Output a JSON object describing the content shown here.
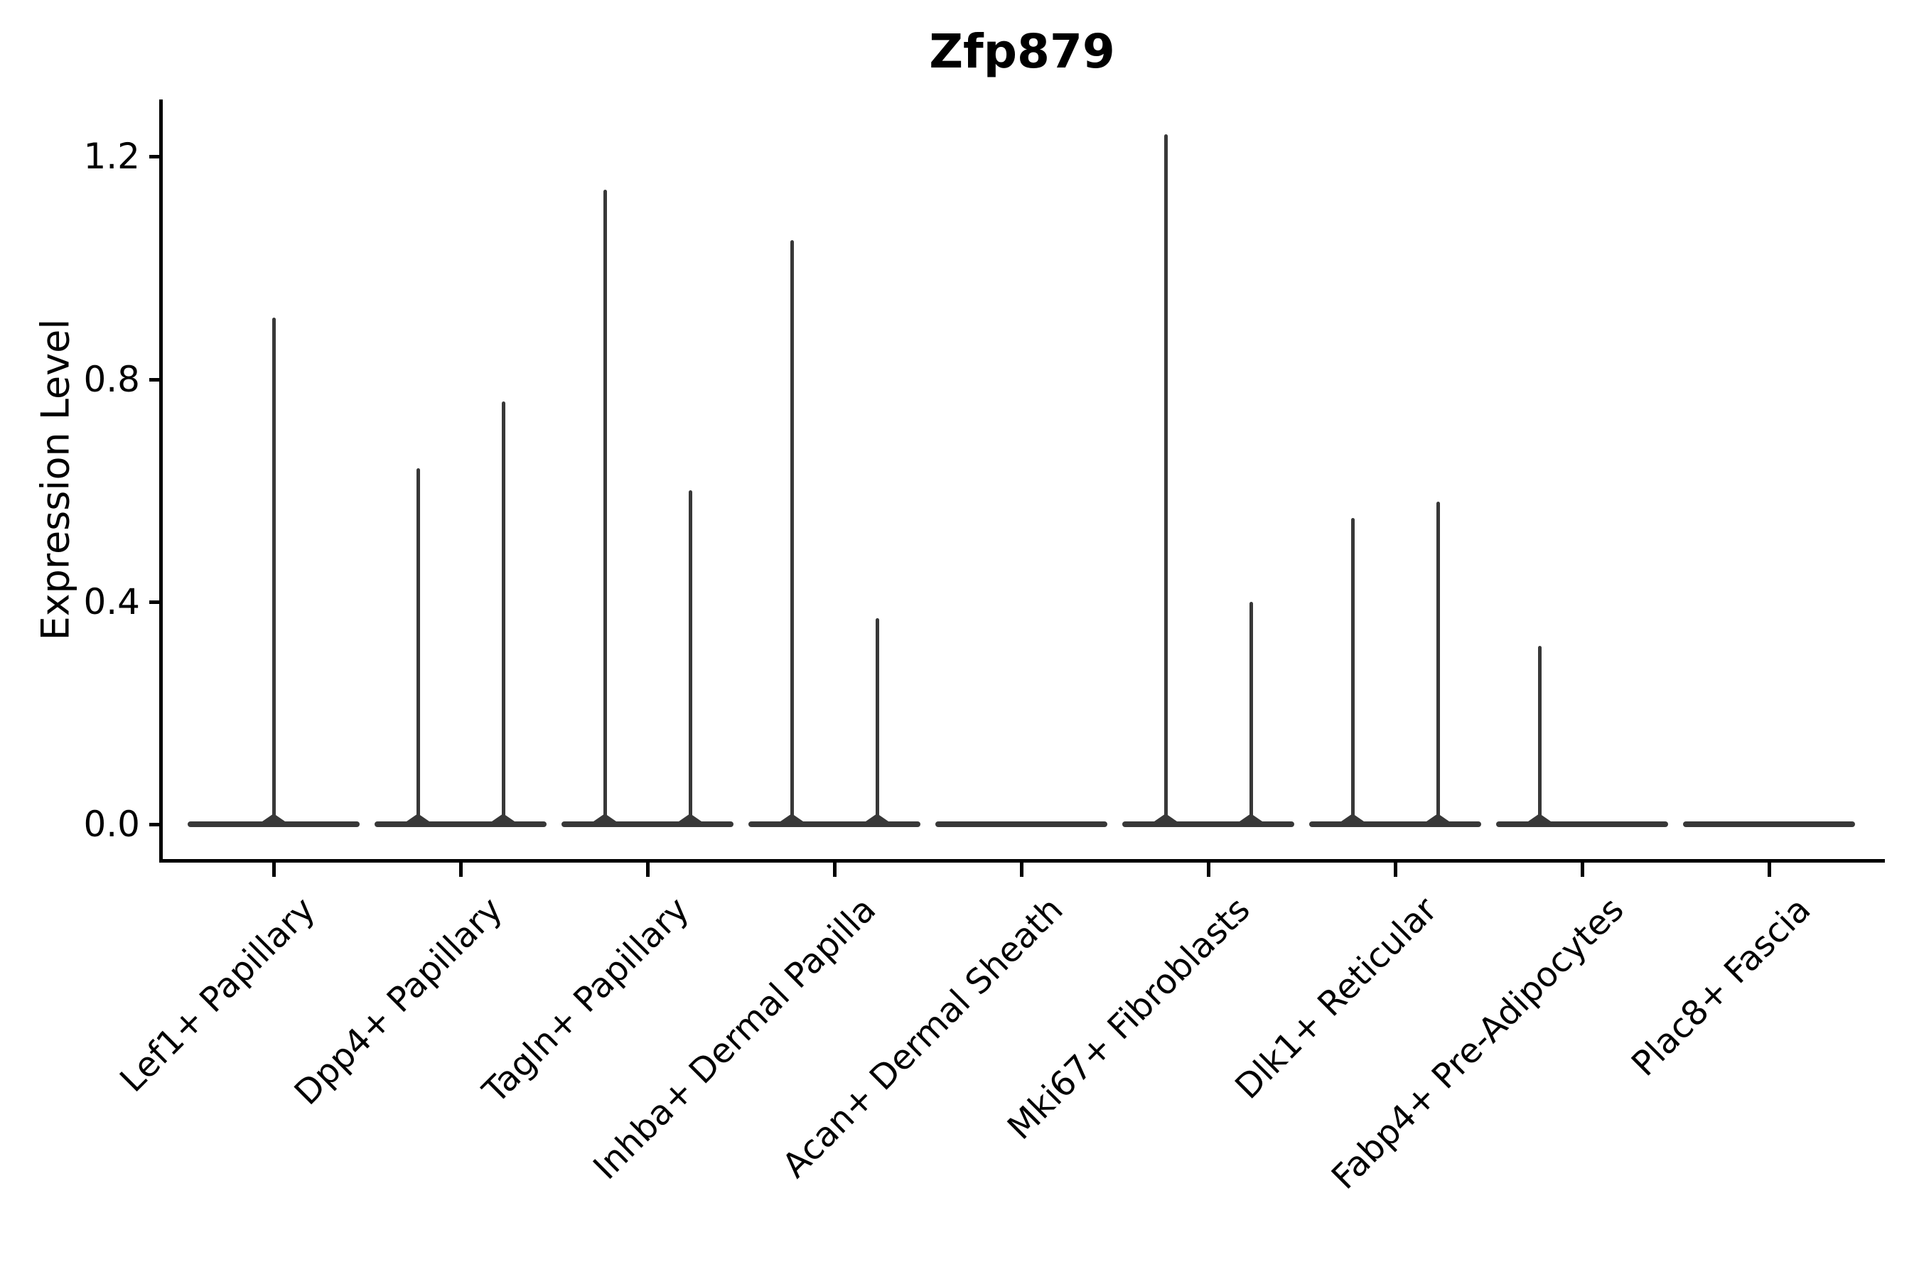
{
  "title": "Zfp879",
  "y_axis": {
    "label": "Expression Level",
    "tick_labels": [
      "0.0",
      "0.4",
      "0.8",
      "1.2"
    ]
  },
  "x_axis": {
    "tick_labels": [
      "Lef1+ Papillary",
      "Dpp4+ Papillary",
      "Tagln+ Papillary",
      "Inhba+ Dermal Papilla",
      "Acan+ Dermal Sheath",
      "Mki67+ Fibroblasts",
      "Dlk1+ Reticular",
      "Fabp4+ Pre-Adipocytes",
      "Plac8+ Fascia"
    ]
  },
  "chart_data": {
    "type": "violin",
    "title": "Zfp879",
    "xlabel": "",
    "ylabel": "Expression Level",
    "yticks": [
      0.0,
      0.4,
      0.8,
      1.2
    ],
    "ytick_labels": [
      "0.0",
      "0.4",
      "0.8",
      "1.2"
    ],
    "ylim": [
      -0.06,
      1.31
    ],
    "grid": false,
    "legend": null,
    "categories": [
      "Lef1+ Papillary",
      "Dpp4+ Papillary",
      "Tagln+ Papillary",
      "Inhba+ Dermal Papilla",
      "Acan+ Dermal Sheath",
      "Mki67+ Fibroblasts",
      "Dlk1+ Reticular",
      "Fabp4+ Pre-Adipocytes",
      "Plac8+ Fascia"
    ],
    "description": "Violin plot; each violin's density mass sits at expression 0 (flat wide base) with thin vertical tails reaching the listed maximum expression values. Categories with an empty tails list are flat (all-zero expression).",
    "violins": [
      {
        "category": "Lef1+ Papillary",
        "tails": [
          {
            "position": "center",
            "max": 0.91
          }
        ]
      },
      {
        "category": "Dpp4+ Papillary",
        "tails": [
          {
            "position": "left",
            "max": 0.64
          },
          {
            "position": "right",
            "max": 0.76
          }
        ]
      },
      {
        "category": "Tagln+ Papillary",
        "tails": [
          {
            "position": "left",
            "max": 1.14
          },
          {
            "position": "right",
            "max": 0.6
          }
        ]
      },
      {
        "category": "Inhba+ Dermal Papilla",
        "tails": [
          {
            "position": "left",
            "max": 1.05
          },
          {
            "position": "right",
            "max": 0.37
          }
        ]
      },
      {
        "category": "Acan+ Dermal Sheath",
        "tails": []
      },
      {
        "category": "Mki67+ Fibroblasts",
        "tails": [
          {
            "position": "left",
            "max": 1.24
          },
          {
            "position": "right",
            "max": 0.4
          }
        ]
      },
      {
        "category": "Dlk1+ Reticular",
        "tails": [
          {
            "position": "left",
            "max": 0.55
          },
          {
            "position": "right",
            "max": 0.58
          }
        ]
      },
      {
        "category": "Fabp4+ Pre-Adipocytes",
        "tails": [
          {
            "position": "left",
            "max": 0.32
          }
        ]
      },
      {
        "category": "Plac8+ Fascia",
        "tails": []
      }
    ],
    "colors": {
      "violin": "#383838",
      "axis": "#000000",
      "text": "#000000",
      "background": "#ffffff"
    }
  }
}
